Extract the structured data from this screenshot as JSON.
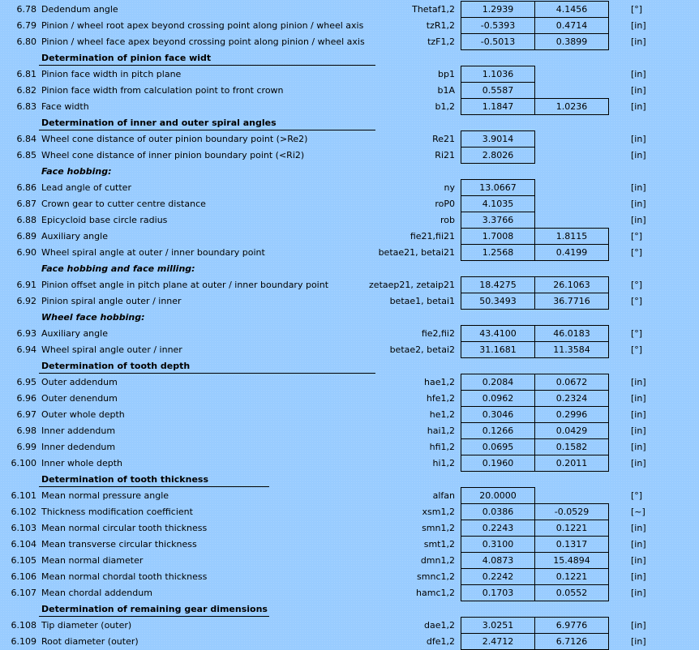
{
  "rows": [
    {
      "type": "item",
      "num": "6.78",
      "label": "Dedendum angle",
      "symbol": "Thetaf1,2",
      "v1": "1.2939",
      "v2": "4.1456",
      "unit": "[°]"
    },
    {
      "type": "item",
      "num": "6.79",
      "label": "Pinion / wheel root apex beyond crossing point along pinion / wheel axis",
      "symbol": "tzR1,2",
      "v1": "-0.5393",
      "v2": "0.4714",
      "unit": "[in]"
    },
    {
      "type": "item",
      "num": "6.80",
      "label": "Pinion / wheel face apex beyond crossing point along pinion / wheel axis",
      "symbol": "tzF1,2",
      "v1": "-0.5013",
      "v2": "0.3899",
      "unit": "[in]"
    },
    {
      "type": "section",
      "label": "Determination of pinion face widt"
    },
    {
      "type": "item",
      "num": "6.81",
      "label": "Pinion face width in pitch plane",
      "symbol": "bp1",
      "v1": "1.1036",
      "unit": "[in]"
    },
    {
      "type": "item",
      "num": "6.82",
      "label": "Pinion face width from calculation point to front crown",
      "symbol": "b1A",
      "v1": "0.5587",
      "unit": "[in]"
    },
    {
      "type": "item",
      "num": "6.83",
      "label": "Face width",
      "symbol": "b1,2",
      "v1": "1.1847",
      "v2": "1.0236",
      "unit": "[in]"
    },
    {
      "type": "section",
      "label": "Determination of inner and outer spiral angles"
    },
    {
      "type": "item",
      "num": "6.84",
      "label": "Wheel cone distance of outer pinion boundary point (>Re2)",
      "symbol": "Re21",
      "v1": "3.9014",
      "unit": "[in]"
    },
    {
      "type": "item",
      "num": "6.85",
      "label": "Wheel cone distance of inner pinion boundary point (<Ri2)",
      "symbol": "Ri21",
      "v1": "2.8026",
      "unit": "[in]"
    },
    {
      "type": "subsection",
      "label": "Face hobbing:"
    },
    {
      "type": "item",
      "num": "6.86",
      "label": "Lead angle of cutter",
      "symbol": "ny",
      "v1": "13.0667",
      "unit": "[in]"
    },
    {
      "type": "item",
      "num": "6.87",
      "label": "Crown gear to cutter centre distance",
      "symbol": "roP0",
      "v1": "4.1035",
      "unit": "[in]"
    },
    {
      "type": "item",
      "num": "6.88",
      "label": "Epicycloid base circle radius",
      "symbol": "rob",
      "v1": "3.3766",
      "unit": "[in]"
    },
    {
      "type": "item",
      "num": "6.89",
      "label": "Auxiliary angle",
      "symbol": "fie21,fii21",
      "v1": "1.7008",
      "v2": "1.8115",
      "unit": "[°]"
    },
    {
      "type": "item",
      "num": "6.90",
      "label": "Wheel spiral angle at outer / inner boundary point",
      "symbol": "betae21, betai21",
      "v1": "1.2568",
      "v2": "0.4199",
      "unit": "[°]"
    },
    {
      "type": "subsection",
      "label": "Face hobbing and face milling:"
    },
    {
      "type": "item",
      "num": "6.91",
      "label": "Pinion offset angle in pitch plane at outer / inner boundary point",
      "symbol": "zetaep21, zetaip21",
      "v1": "18.4275",
      "v2": "26.1063",
      "unit": "[°]"
    },
    {
      "type": "item",
      "num": "6.92",
      "label": "Pinion spiral angle outer / inner",
      "symbol": "betae1, betai1",
      "v1": "50.3493",
      "v2": "36.7716",
      "unit": "[°]"
    },
    {
      "type": "subsection",
      "label": "Wheel face hobbing:"
    },
    {
      "type": "item",
      "num": "6.93",
      "label": "Auxiliary angle",
      "symbol": "fie2,fii2",
      "v1": "43.4100",
      "v2": "46.0183",
      "unit": "[°]"
    },
    {
      "type": "item",
      "num": "6.94",
      "label": "Wheel spiral angle outer / inner",
      "symbol": "betae2, betai2",
      "v1": "31.1681",
      "v2": "11.3584",
      "unit": "[°]"
    },
    {
      "type": "section",
      "label": "Determination of tooth depth"
    },
    {
      "type": "item",
      "num": "6.95",
      "label": "Outer addendum",
      "symbol": "hae1,2",
      "v1": "0.2084",
      "v2": "0.0672",
      "unit": "[in]"
    },
    {
      "type": "item",
      "num": "6.96",
      "label": "Outer denendum",
      "symbol": "hfe1,2",
      "v1": "0.0962",
      "v2": "0.2324",
      "unit": "[in]"
    },
    {
      "type": "item",
      "num": "6.97",
      "label": "Outer whole depth",
      "symbol": "he1,2",
      "v1": "0.3046",
      "v2": "0.2996",
      "unit": "[in]"
    },
    {
      "type": "item",
      "num": "6.98",
      "label": "Inner addendum",
      "symbol": "hai1,2",
      "v1": "0.1266",
      "v2": "0.0429",
      "unit": "[in]"
    },
    {
      "type": "item",
      "num": "6.99",
      "label": "Inner dedendum",
      "symbol": "hfi1,2",
      "v1": "0.0695",
      "v2": "0.1582",
      "unit": "[in]"
    },
    {
      "type": "item",
      "num": "6.100",
      "label": "Inner whole depth",
      "symbol": "hi1,2",
      "v1": "0.1960",
      "v2": "0.2011",
      "unit": "[in]"
    },
    {
      "type": "section",
      "label": "Determination of tooth thickness"
    },
    {
      "type": "item",
      "num": "6.101",
      "label": "Mean normal pressure angle",
      "symbol": "alfan",
      "v1": "20.0000",
      "unit": "[°]"
    },
    {
      "type": "item",
      "num": "6.102",
      "label": "Thickness modification coefficient",
      "symbol": "xsm1,2",
      "v1": "0.0386",
      "v2": "-0.0529",
      "unit": "[~]"
    },
    {
      "type": "item",
      "num": "6.103",
      "label": "Mean normal circular tooth thickness",
      "symbol": "smn1,2",
      "v1": "0.2243",
      "v2": "0.1221",
      "unit": "[in]"
    },
    {
      "type": "item",
      "num": "6.104",
      "label": "Mean transverse circular thickness",
      "symbol": "smt1,2",
      "v1": "0.3100",
      "v2": "0.1317",
      "unit": "[in]"
    },
    {
      "type": "item",
      "num": "6.105",
      "label": "Mean normal diameter",
      "symbol": "dmn1,2",
      "v1": "4.0873",
      "v2": "15.4894",
      "unit": "[in]"
    },
    {
      "type": "item",
      "num": "6.106",
      "label": "Mean normal chordal tooth thickness",
      "symbol": "smnc1,2",
      "v1": "0.2242",
      "v2": "0.1221",
      "unit": "[in]"
    },
    {
      "type": "item",
      "num": "6.107",
      "label": "Mean chordal addendum",
      "symbol": "hamc1,2",
      "v1": "0.1703",
      "v2": "0.0552",
      "unit": "[in]"
    },
    {
      "type": "section",
      "label": "Determination of remaining gear dimensions"
    },
    {
      "type": "item",
      "num": "6.108",
      "label": "Tip diameter (outer)",
      "symbol": "dae1,2",
      "v1": "3.0251",
      "v2": "6.9776",
      "unit": "[in]"
    },
    {
      "type": "item",
      "num": "6.109",
      "label": "Root diameter (outer)",
      "symbol": "dfe1,2",
      "v1": "2.4712",
      "v2": "6.7126",
      "unit": "[in]"
    }
  ]
}
